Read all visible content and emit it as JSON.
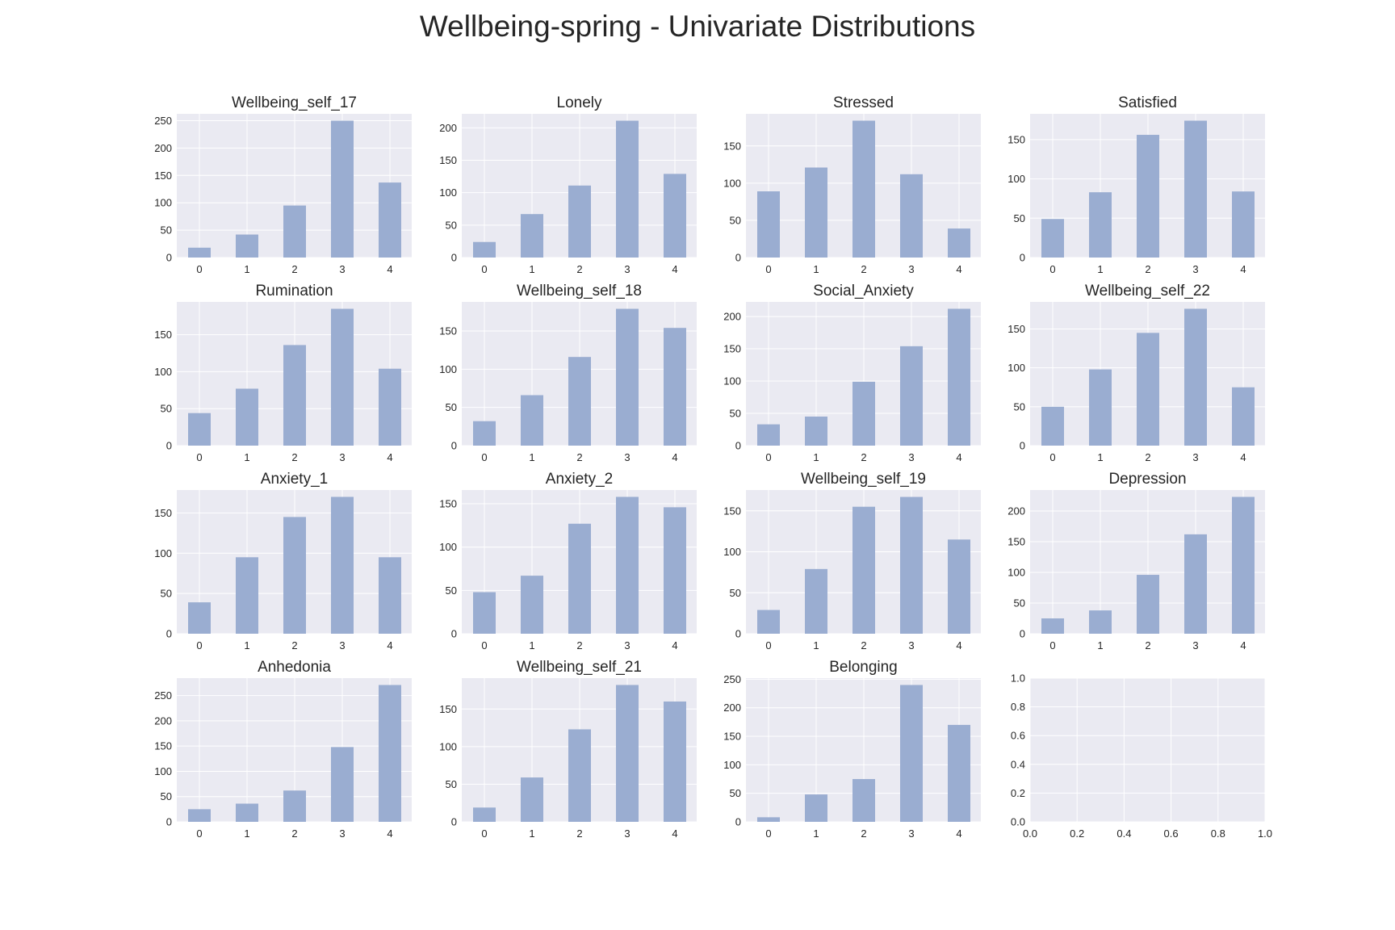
{
  "figure": {
    "title": "Wellbeing-spring - Univariate Distributions"
  },
  "style": {
    "axes_bg": "#eaeaf2",
    "grid_color": "#ffffff",
    "bar_color": "#9aadd1",
    "text_color": "#262626"
  },
  "chart_data": [
    {
      "type": "bar",
      "title": "Wellbeing_self_17",
      "categories": [
        "0",
        "1",
        "2",
        "3",
        "4"
      ],
      "values": [
        18,
        42,
        95,
        250,
        137
      ],
      "ylim": [
        0,
        262.5
      ],
      "yticks": [
        0,
        50,
        100,
        150,
        200,
        250
      ],
      "grid": true
    },
    {
      "type": "bar",
      "title": "Lonely",
      "categories": [
        "0",
        "1",
        "2",
        "3",
        "4"
      ],
      "values": [
        24,
        67,
        111,
        211,
        129
      ],
      "ylim": [
        0,
        221.6
      ],
      "yticks": [
        0,
        50,
        100,
        150,
        200
      ],
      "grid": true
    },
    {
      "type": "bar",
      "title": "Stressed",
      "categories": [
        "0",
        "1",
        "2",
        "3",
        "4"
      ],
      "values": [
        89,
        121,
        184,
        112,
        39
      ],
      "ylim": [
        0,
        193.2
      ],
      "yticks": [
        0,
        50,
        100,
        150
      ],
      "grid": true
    },
    {
      "type": "bar",
      "title": "Satisfied",
      "categories": [
        "0",
        "1",
        "2",
        "3",
        "4"
      ],
      "values": [
        49,
        83,
        156,
        174,
        84
      ],
      "ylim": [
        0,
        182.7
      ],
      "yticks": [
        0,
        50,
        100,
        150
      ],
      "grid": true
    },
    {
      "type": "bar",
      "title": "Rumination",
      "categories": [
        "0",
        "1",
        "2",
        "3",
        "4"
      ],
      "values": [
        44,
        77,
        136,
        185,
        104
      ],
      "ylim": [
        0,
        194.3
      ],
      "yticks": [
        0,
        50,
        100,
        150
      ],
      "grid": true
    },
    {
      "type": "bar",
      "title": "Wellbeing_self_18",
      "categories": [
        "0",
        "1",
        "2",
        "3",
        "4"
      ],
      "values": [
        32,
        66,
        116,
        179,
        154
      ],
      "ylim": [
        0,
        188
      ],
      "yticks": [
        0,
        50,
        100,
        150
      ],
      "grid": true
    },
    {
      "type": "bar",
      "title": "Social_Anxiety",
      "categories": [
        "0",
        "1",
        "2",
        "3",
        "4"
      ],
      "values": [
        33,
        45,
        99,
        154,
        212
      ],
      "ylim": [
        0,
        222.6
      ],
      "yticks": [
        0,
        50,
        100,
        150,
        200
      ],
      "grid": true
    },
    {
      "type": "bar",
      "title": "Wellbeing_self_22",
      "categories": [
        "0",
        "1",
        "2",
        "3",
        "4"
      ],
      "values": [
        50,
        98,
        145,
        176,
        75
      ],
      "ylim": [
        0,
        184.8
      ],
      "yticks": [
        0,
        50,
        100,
        150
      ],
      "grid": true
    },
    {
      "type": "bar",
      "title": "Anxiety_1",
      "categories": [
        "0",
        "1",
        "2",
        "3",
        "4"
      ],
      "values": [
        39,
        95,
        145,
        170,
        95
      ],
      "ylim": [
        0,
        178.5
      ],
      "yticks": [
        0,
        50,
        100,
        150
      ],
      "grid": true
    },
    {
      "type": "bar",
      "title": "Anxiety_2",
      "categories": [
        "0",
        "1",
        "2",
        "3",
        "4"
      ],
      "values": [
        48,
        67,
        127,
        158,
        146
      ],
      "ylim": [
        0,
        165.9
      ],
      "yticks": [
        0,
        50,
        100,
        150
      ],
      "grid": true
    },
    {
      "type": "bar",
      "title": "Wellbeing_self_19",
      "categories": [
        "0",
        "1",
        "2",
        "3",
        "4"
      ],
      "values": [
        29,
        79,
        155,
        167,
        115
      ],
      "ylim": [
        0,
        175.4
      ],
      "yticks": [
        0,
        50,
        100,
        150
      ],
      "grid": true
    },
    {
      "type": "bar",
      "title": "Depression",
      "categories": [
        "0",
        "1",
        "2",
        "3",
        "4"
      ],
      "values": [
        25,
        38,
        96,
        162,
        223
      ],
      "ylim": [
        0,
        234.2
      ],
      "yticks": [
        0,
        50,
        100,
        150,
        200
      ],
      "grid": true
    },
    {
      "type": "bar",
      "title": "Anhedonia",
      "categories": [
        "0",
        "1",
        "2",
        "3",
        "4"
      ],
      "values": [
        25,
        36,
        62,
        148,
        271
      ],
      "ylim": [
        0,
        284.6
      ],
      "yticks": [
        0,
        50,
        100,
        150,
        200,
        250
      ],
      "grid": true
    },
    {
      "type": "bar",
      "title": "Wellbeing_self_21",
      "categories": [
        "0",
        "1",
        "2",
        "3",
        "4"
      ],
      "values": [
        19,
        59,
        123,
        182,
        160
      ],
      "ylim": [
        0,
        191.1
      ],
      "yticks": [
        0,
        50,
        100,
        150
      ],
      "grid": true
    },
    {
      "type": "bar",
      "title": "Belonging",
      "categories": [
        "0",
        "1",
        "2",
        "3",
        "4"
      ],
      "values": [
        8,
        48,
        75,
        240,
        170
      ],
      "ylim": [
        0,
        252
      ],
      "yticks": [
        0,
        50,
        100,
        150,
        200,
        250
      ],
      "grid": true
    },
    {
      "type": "bar",
      "title": "",
      "categories": [],
      "values": [],
      "xlim": [
        0,
        1
      ],
      "ylim": [
        0,
        1
      ],
      "xticks": [
        "0.0",
        "0.2",
        "0.4",
        "0.6",
        "0.8",
        "1.0"
      ],
      "yticks": [
        "0.0",
        "0.2",
        "0.4",
        "0.6",
        "0.8",
        "1.0"
      ],
      "grid": true,
      "empty": true
    }
  ]
}
